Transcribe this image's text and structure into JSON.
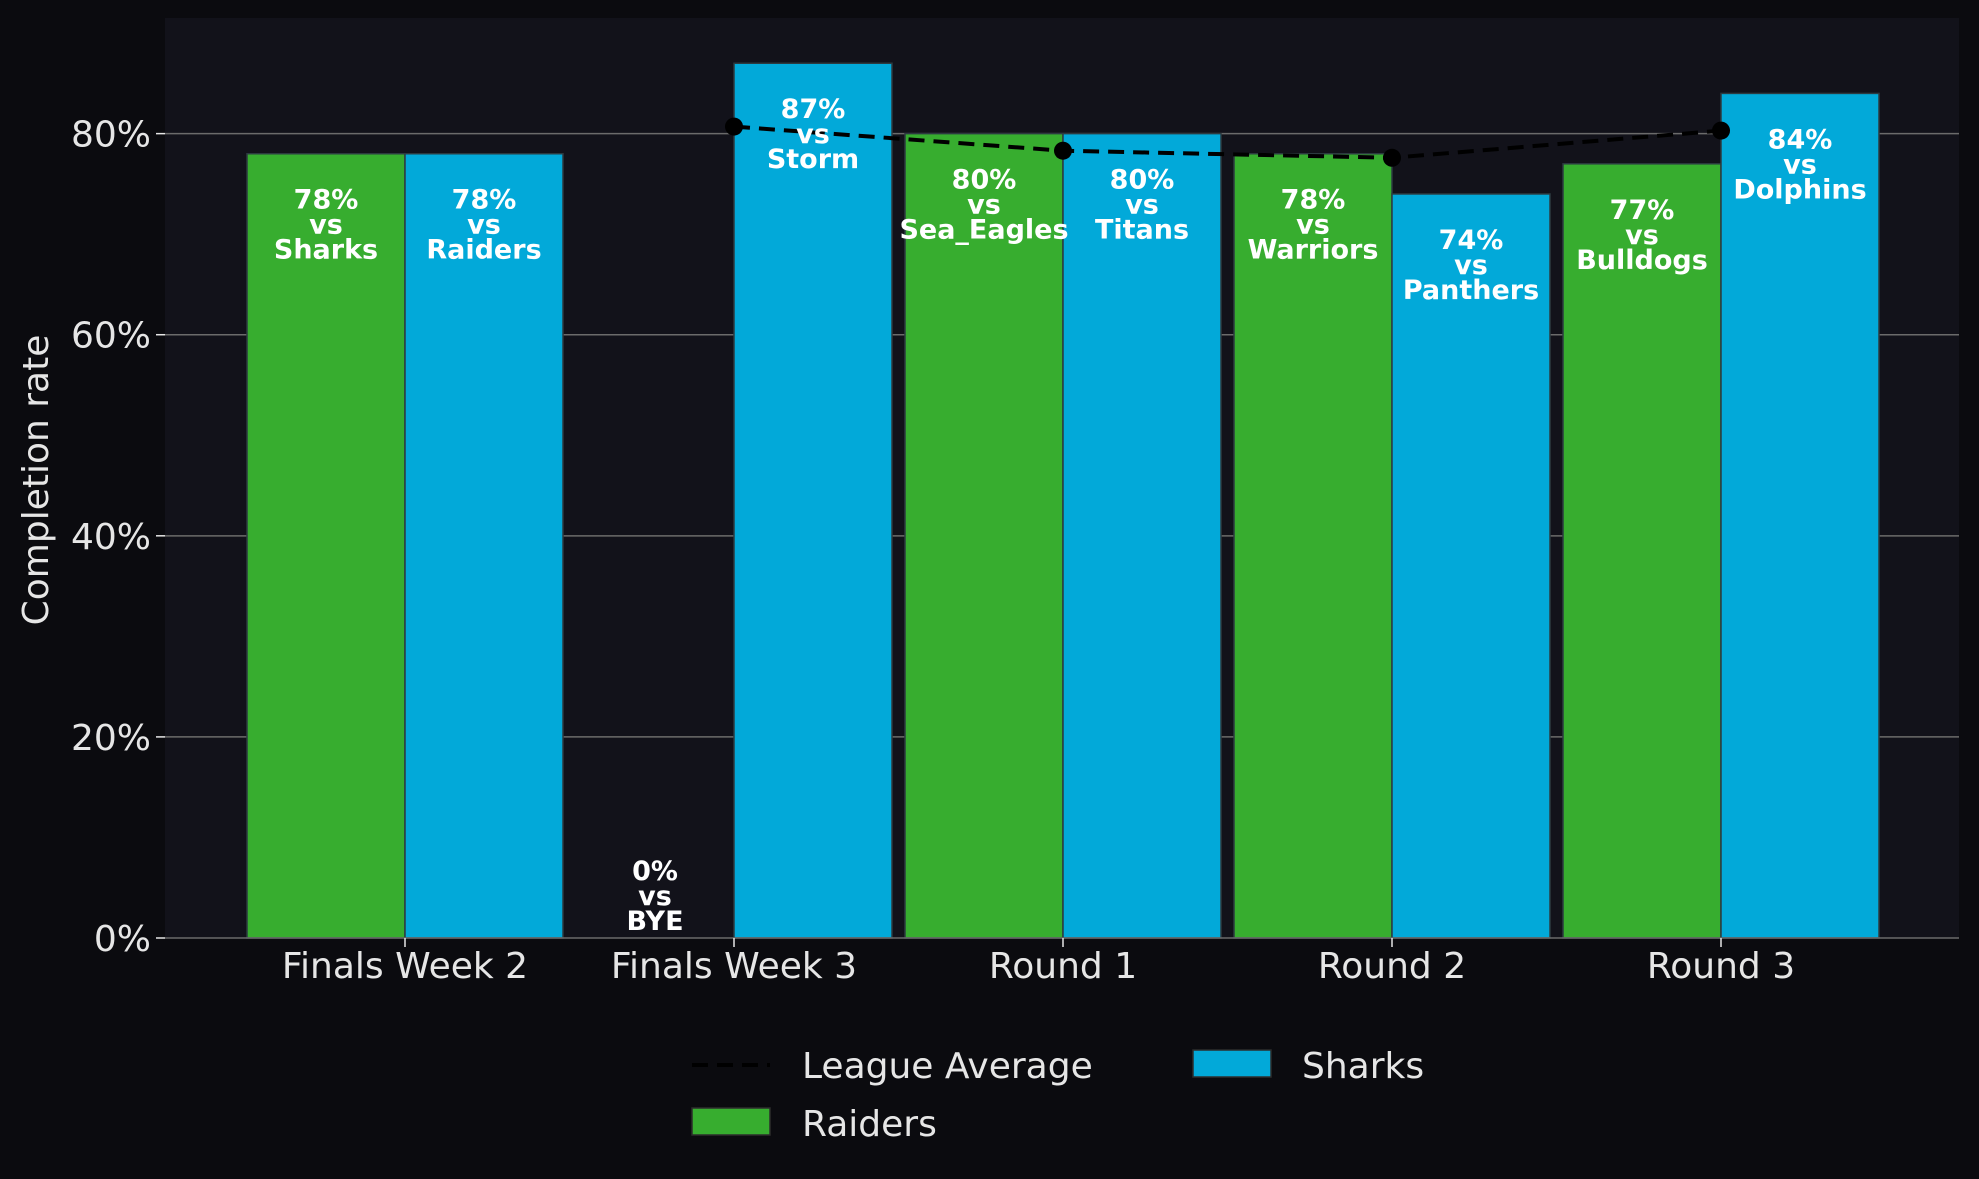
{
  "chart_data": {
    "type": "bar",
    "title": "",
    "xlabel": "",
    "ylabel": "Completion rate",
    "ylim": [
      0,
      91.5
    ],
    "yticks": [
      0,
      20,
      40,
      60,
      80
    ],
    "ytick_labels": [
      "0%",
      "20%",
      "40%",
      "60%",
      "80%"
    ],
    "grid": "horizontal",
    "legend_position": "bottom-center",
    "categories": [
      "Finals Week 2",
      "Finals Week 3",
      "Round 1",
      "Round 2",
      "Round 3"
    ],
    "series": [
      {
        "name": "Raiders",
        "color": "#37ad2f",
        "values": [
          78,
          0,
          80,
          78,
          77
        ],
        "labels": [
          [
            "78%",
            "vs",
            "Sharks"
          ],
          [
            "0%",
            "vs",
            "BYE"
          ],
          [
            "80%",
            "vs",
            "Sea_Eagles"
          ],
          [
            "78%",
            "vs",
            "Warriors"
          ],
          [
            "77%",
            "vs",
            "Bulldogs"
          ]
        ]
      },
      {
        "name": "Sharks",
        "color": "#02a9d9",
        "values": [
          78,
          87,
          80,
          74,
          84
        ],
        "labels": [
          [
            "78%",
            "vs",
            "Raiders"
          ],
          [
            "87%",
            "vs",
            "Storm"
          ],
          [
            "80%",
            "vs",
            "Titans"
          ],
          [
            "74%",
            "vs",
            "Panthers"
          ],
          [
            "84%",
            "vs",
            "Dolphins"
          ]
        ]
      }
    ],
    "league_average": {
      "name": "League Average",
      "style": "dashed",
      "color": "#000000",
      "values": [
        null,
        80.7,
        78.3,
        77.6,
        80.3
      ]
    },
    "legend": [
      "League Average",
      "Raiders",
      "Sharks"
    ]
  },
  "colors": {
    "figure_background": "#0b0b0f",
    "axes_background": "#12121a",
    "grid": "#6b6b6b",
    "text": "#e6e6e6"
  }
}
